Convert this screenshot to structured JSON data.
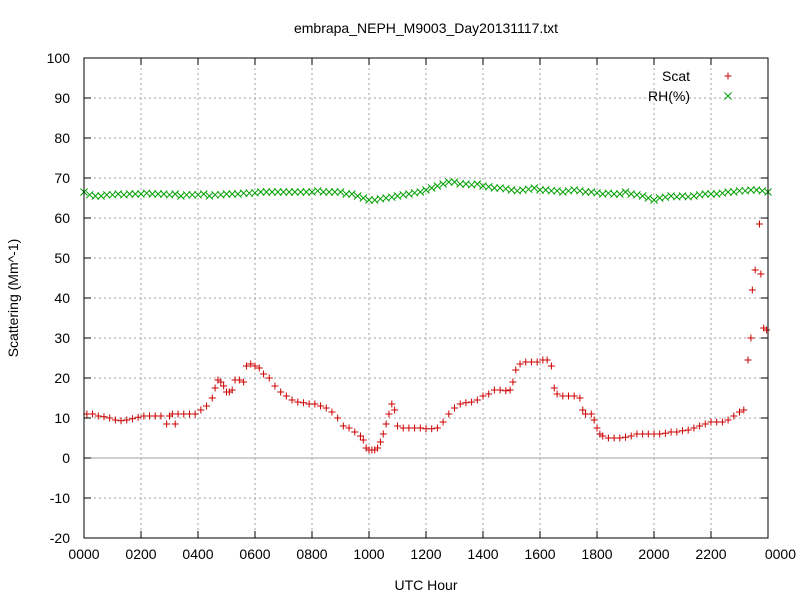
{
  "chart_data": {
    "type": "scatter",
    "title": "embrapa_NEPH_M9003_Day20131117.txt",
    "xlabel": "UTC Hour",
    "ylabel": "Scattering (Mm^-1)",
    "xlim": [
      0,
      24
    ],
    "ylim": [
      -20,
      100
    ],
    "x_ticks": [
      {
        "value": 0,
        "label": "0000"
      },
      {
        "value": 2,
        "label": "0200"
      },
      {
        "value": 4,
        "label": "0400"
      },
      {
        "value": 6,
        "label": "0600"
      },
      {
        "value": 8,
        "label": "0800"
      },
      {
        "value": 10,
        "label": "1000"
      },
      {
        "value": 12,
        "label": "1200"
      },
      {
        "value": 14,
        "label": "1400"
      },
      {
        "value": 16,
        "label": "1600"
      },
      {
        "value": 18,
        "label": "1800"
      },
      {
        "value": 20,
        "label": "2000"
      },
      {
        "value": 22,
        "label": "2200"
      },
      {
        "value": 24,
        "label": "0000"
      }
    ],
    "y_ticks": [
      {
        "value": -20,
        "label": "-20"
      },
      {
        "value": -10,
        "label": "-10"
      },
      {
        "value": 0,
        "label": "0"
      },
      {
        "value": 10,
        "label": "10"
      },
      {
        "value": 20,
        "label": "20"
      },
      {
        "value": 30,
        "label": "30"
      },
      {
        "value": 40,
        "label": "40"
      },
      {
        "value": 50,
        "label": "50"
      },
      {
        "value": 60,
        "label": "60"
      },
      {
        "value": 70,
        "label": "70"
      },
      {
        "value": 80,
        "label": "80"
      },
      {
        "value": 90,
        "label": "90"
      },
      {
        "value": 100,
        "label": "100"
      }
    ],
    "grid": true,
    "zero_line": true,
    "legend_position": "top-right",
    "series": [
      {
        "name": "Scat",
        "marker": "plus",
        "color": "#cc0000",
        "points": [
          [
            0.1,
            11
          ],
          [
            0.3,
            11
          ],
          [
            0.5,
            10.5
          ],
          [
            0.7,
            10.3
          ],
          [
            0.9,
            10
          ],
          [
            1.1,
            9.5
          ],
          [
            1.3,
            9.3
          ],
          [
            1.5,
            9.5
          ],
          [
            1.7,
            9.8
          ],
          [
            1.9,
            10.2
          ],
          [
            2.1,
            10.5
          ],
          [
            2.3,
            10.5
          ],
          [
            2.5,
            10.5
          ],
          [
            2.7,
            10.5
          ],
          [
            2.9,
            8.5
          ],
          [
            3.0,
            10.5
          ],
          [
            3.1,
            11
          ],
          [
            3.2,
            8.5
          ],
          [
            3.3,
            11
          ],
          [
            3.5,
            11
          ],
          [
            3.7,
            11
          ],
          [
            3.9,
            11
          ],
          [
            4.1,
            12
          ],
          [
            4.3,
            13
          ],
          [
            4.5,
            15
          ],
          [
            4.6,
            17.5
          ],
          [
            4.7,
            19.5
          ],
          [
            4.8,
            19
          ],
          [
            4.9,
            18
          ],
          [
            5.0,
            16.5
          ],
          [
            5.1,
            16.5
          ],
          [
            5.2,
            17
          ],
          [
            5.3,
            19.5
          ],
          [
            5.45,
            19.5
          ],
          [
            5.6,
            19
          ],
          [
            5.7,
            23
          ],
          [
            5.85,
            23.5
          ],
          [
            6.0,
            23
          ],
          [
            6.15,
            22.5
          ],
          [
            6.3,
            21
          ],
          [
            6.5,
            20
          ],
          [
            6.7,
            18
          ],
          [
            6.9,
            16.5
          ],
          [
            7.1,
            15.5
          ],
          [
            7.3,
            14.5
          ],
          [
            7.5,
            14
          ],
          [
            7.7,
            13.8
          ],
          [
            7.9,
            13.5
          ],
          [
            8.1,
            13.5
          ],
          [
            8.3,
            13
          ],
          [
            8.5,
            12.5
          ],
          [
            8.7,
            11.5
          ],
          [
            8.9,
            10
          ],
          [
            9.1,
            8
          ],
          [
            9.3,
            7.5
          ],
          [
            9.5,
            6.5
          ],
          [
            9.7,
            5.5
          ],
          [
            9.8,
            4.5
          ],
          [
            9.9,
            2.5
          ],
          [
            10.0,
            2
          ],
          [
            10.1,
            2
          ],
          [
            10.2,
            2
          ],
          [
            10.3,
            2.5
          ],
          [
            10.4,
            4
          ],
          [
            10.5,
            6
          ],
          [
            10.6,
            8.5
          ],
          [
            10.7,
            11
          ],
          [
            10.8,
            13.5
          ],
          [
            10.9,
            12
          ],
          [
            11.0,
            8
          ],
          [
            11.2,
            7.5
          ],
          [
            11.4,
            7.5
          ],
          [
            11.6,
            7.5
          ],
          [
            11.8,
            7.5
          ],
          [
            12.0,
            7.3
          ],
          [
            12.2,
            7.3
          ],
          [
            12.4,
            7.5
          ],
          [
            12.6,
            9
          ],
          [
            12.8,
            11
          ],
          [
            13.0,
            12.5
          ],
          [
            13.2,
            13.5
          ],
          [
            13.4,
            13.8
          ],
          [
            13.6,
            14
          ],
          [
            13.8,
            14.5
          ],
          [
            14.0,
            15.5
          ],
          [
            14.2,
            16
          ],
          [
            14.4,
            17
          ],
          [
            14.6,
            17
          ],
          [
            14.8,
            16.8
          ],
          [
            14.95,
            17
          ],
          [
            15.05,
            19
          ],
          [
            15.15,
            22
          ],
          [
            15.3,
            23.5
          ],
          [
            15.5,
            24
          ],
          [
            15.7,
            24
          ],
          [
            15.9,
            24
          ],
          [
            16.1,
            24.5
          ],
          [
            16.25,
            24.5
          ],
          [
            16.4,
            23
          ],
          [
            16.5,
            17.5
          ],
          [
            16.6,
            16
          ],
          [
            16.8,
            15.5
          ],
          [
            17.0,
            15.5
          ],
          [
            17.2,
            15.5
          ],
          [
            17.4,
            15
          ],
          [
            17.5,
            12
          ],
          [
            17.6,
            11
          ],
          [
            17.8,
            11
          ],
          [
            17.9,
            9.5
          ],
          [
            18.0,
            7.5
          ],
          [
            18.1,
            6
          ],
          [
            18.2,
            5.5
          ],
          [
            18.4,
            5
          ],
          [
            18.6,
            5
          ],
          [
            18.8,
            5
          ],
          [
            19.0,
            5.2
          ],
          [
            19.2,
            5.5
          ],
          [
            19.4,
            6
          ],
          [
            19.6,
            6
          ],
          [
            19.8,
            6
          ],
          [
            20.0,
            6
          ],
          [
            20.2,
            6
          ],
          [
            20.4,
            6.2
          ],
          [
            20.6,
            6.5
          ],
          [
            20.8,
            6.5
          ],
          [
            21.0,
            6.8
          ],
          [
            21.2,
            7
          ],
          [
            21.4,
            7.5
          ],
          [
            21.6,
            8
          ],
          [
            21.8,
            8.5
          ],
          [
            22.0,
            9
          ],
          [
            22.2,
            9
          ],
          [
            22.4,
            9
          ],
          [
            22.6,
            9.5
          ],
          [
            22.8,
            10.5
          ],
          [
            23.0,
            11.5
          ],
          [
            23.15,
            12
          ],
          [
            23.3,
            24.5
          ],
          [
            23.4,
            30
          ],
          [
            23.45,
            42
          ],
          [
            23.55,
            47
          ],
          [
            23.7,
            58.5
          ],
          [
            23.75,
            46
          ],
          [
            23.85,
            32.5
          ],
          [
            23.95,
            32
          ]
        ]
      },
      {
        "name": "RH(%)",
        "marker": "cross",
        "color": "#00a000",
        "points": [
          [
            0,
            66.5
          ],
          [
            0.2,
            65.8
          ],
          [
            0.4,
            65.5
          ],
          [
            0.6,
            65.5
          ],
          [
            0.8,
            65.8
          ],
          [
            1.0,
            65.8
          ],
          [
            1.2,
            66
          ],
          [
            1.4,
            65.8
          ],
          [
            1.6,
            66
          ],
          [
            1.8,
            66
          ],
          [
            2.0,
            66
          ],
          [
            2.2,
            66.2
          ],
          [
            2.4,
            66
          ],
          [
            2.6,
            66
          ],
          [
            2.8,
            66
          ],
          [
            3.0,
            65.8
          ],
          [
            3.2,
            66
          ],
          [
            3.4,
            65.5
          ],
          [
            3.6,
            65.8
          ],
          [
            3.8,
            65.8
          ],
          [
            4.0,
            65.8
          ],
          [
            4.2,
            66
          ],
          [
            4.4,
            65.5
          ],
          [
            4.6,
            65.8
          ],
          [
            4.8,
            65.8
          ],
          [
            5.0,
            66
          ],
          [
            5.2,
            66
          ],
          [
            5.4,
            66
          ],
          [
            5.6,
            66.2
          ],
          [
            5.8,
            66.2
          ],
          [
            6.0,
            66.3
          ],
          [
            6.2,
            66.5
          ],
          [
            6.4,
            66.5
          ],
          [
            6.6,
            66.5
          ],
          [
            6.8,
            66.5
          ],
          [
            7.0,
            66.5
          ],
          [
            7.2,
            66.5
          ],
          [
            7.4,
            66.5
          ],
          [
            7.6,
            66.5
          ],
          [
            7.8,
            66.5
          ],
          [
            8.0,
            66.5
          ],
          [
            8.2,
            66.8
          ],
          [
            8.4,
            66.5
          ],
          [
            8.6,
            66.5
          ],
          [
            8.8,
            66.5
          ],
          [
            9.0,
            66.5
          ],
          [
            9.2,
            66
          ],
          [
            9.4,
            66
          ],
          [
            9.6,
            65.5
          ],
          [
            9.8,
            65
          ],
          [
            10.0,
            64.5
          ],
          [
            10.2,
            64.5
          ],
          [
            10.4,
            64.8
          ],
          [
            10.6,
            65
          ],
          [
            10.8,
            65.2
          ],
          [
            11.0,
            65.5
          ],
          [
            11.2,
            65.8
          ],
          [
            11.4,
            66
          ],
          [
            11.6,
            66.3
          ],
          [
            11.8,
            66.5
          ],
          [
            12.0,
            67
          ],
          [
            12.2,
            67.5
          ],
          [
            12.4,
            68
          ],
          [
            12.6,
            68.5
          ],
          [
            12.8,
            69
          ],
          [
            13.0,
            69
          ],
          [
            13.2,
            68.5
          ],
          [
            13.4,
            68.5
          ],
          [
            13.6,
            68.3
          ],
          [
            13.8,
            68.5
          ],
          [
            14.0,
            68
          ],
          [
            14.2,
            67.8
          ],
          [
            14.4,
            67.5
          ],
          [
            14.6,
            67.5
          ],
          [
            14.8,
            67.3
          ],
          [
            15.0,
            67
          ],
          [
            15.2,
            66.8
          ],
          [
            15.4,
            67
          ],
          [
            15.6,
            67.2
          ],
          [
            15.8,
            67.5
          ],
          [
            16.0,
            67
          ],
          [
            16.2,
            67
          ],
          [
            16.4,
            66.8
          ],
          [
            16.6,
            66.8
          ],
          [
            16.8,
            66.5
          ],
          [
            17.0,
            66.8
          ],
          [
            17.2,
            67
          ],
          [
            17.4,
            66.8
          ],
          [
            17.6,
            66.5
          ],
          [
            17.8,
            66.5
          ],
          [
            18.0,
            66.3
          ],
          [
            18.2,
            66
          ],
          [
            18.4,
            66.2
          ],
          [
            18.6,
            66
          ],
          [
            18.8,
            66
          ],
          [
            19.0,
            66.5
          ],
          [
            19.2,
            66
          ],
          [
            19.4,
            65.8
          ],
          [
            19.6,
            65.5
          ],
          [
            19.8,
            65
          ],
          [
            20.0,
            64.5
          ],
          [
            20.2,
            65
          ],
          [
            20.4,
            65.2
          ],
          [
            20.6,
            65.5
          ],
          [
            20.8,
            65.3
          ],
          [
            21.0,
            65.5
          ],
          [
            21.2,
            65.3
          ],
          [
            21.4,
            65.5
          ],
          [
            21.6,
            65.8
          ],
          [
            21.8,
            66
          ],
          [
            22.0,
            66
          ],
          [
            22.2,
            66
          ],
          [
            22.4,
            66.2
          ],
          [
            22.6,
            66.5
          ],
          [
            22.8,
            66.5
          ],
          [
            23.0,
            66.8
          ],
          [
            23.2,
            66.8
          ],
          [
            23.4,
            67
          ],
          [
            23.6,
            67
          ],
          [
            23.8,
            66.8
          ],
          [
            24.0,
            66.5
          ]
        ]
      }
    ]
  }
}
